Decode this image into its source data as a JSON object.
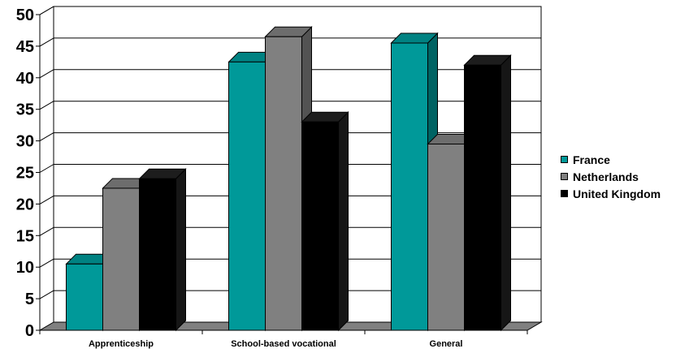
{
  "chart_data": {
    "type": "bar",
    "title": "",
    "xlabel": "",
    "ylabel": "",
    "categories": [
      "Apprenticeship",
      "School-based vocational",
      "General"
    ],
    "series": [
      {
        "name": "France",
        "values": [
          10.5,
          42.5,
          45.5
        ],
        "color": "#009999"
      },
      {
        "name": "Netherlands",
        "values": [
          22.5,
          46.5,
          29.5
        ],
        "color": "#808080"
      },
      {
        "name": "United Kingdom",
        "values": [
          24.0,
          33.0,
          42.0
        ],
        "color": "#000000"
      }
    ],
    "ylim": [
      0,
      50
    ],
    "yticks": [
      "0",
      "5",
      "10",
      "15",
      "20",
      "25",
      "30",
      "35",
      "40",
      "45",
      "50"
    ],
    "grid": true,
    "legend_position": "right",
    "style": "3d-clustered-column"
  }
}
